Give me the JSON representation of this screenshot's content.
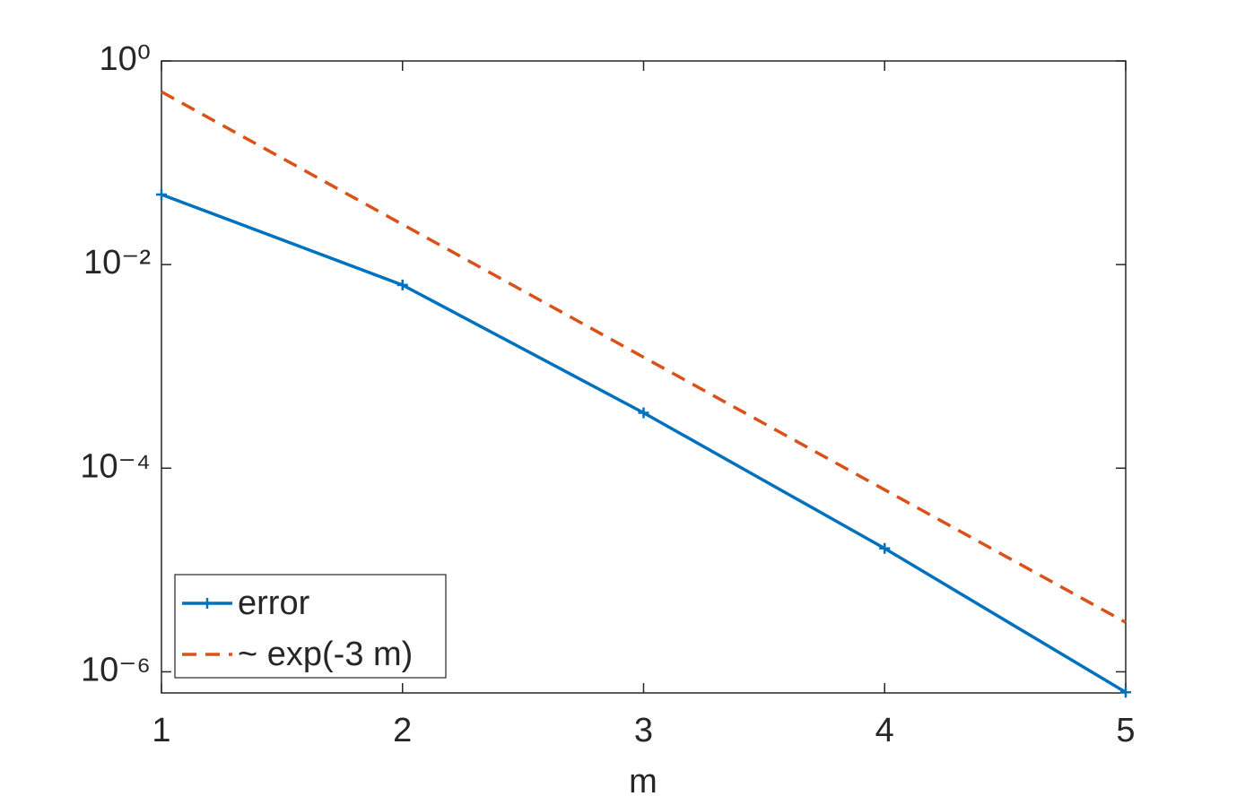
{
  "chart_data": {
    "type": "line",
    "x_label": "m",
    "x": [
      1,
      2,
      3,
      4,
      5
    ],
    "series": [
      {
        "name": "error",
        "color": "#0072bd",
        "style": "solid",
        "marker": "+",
        "values": [
          0.0488,
          0.0063,
          0.00035,
          1.63e-05,
          6.3e-07
        ]
      },
      {
        "name": "~ exp(-3 m)",
        "color": "#d95319",
        "style": "dashed",
        "values": [
          0.498,
          0.0248,
          0.00123,
          6.14e-05,
          3.06e-06
        ]
      }
    ],
    "xlim": [
      1,
      5
    ],
    "xticks": [
      1,
      2,
      3,
      4,
      5
    ],
    "ylim": [
      6.2e-07,
      1
    ],
    "y_scale": "log",
    "yticks": [
      {
        "value": 1e-06,
        "label": "10⁻⁶"
      },
      {
        "value": 0.0001,
        "label": "10⁻⁴"
      },
      {
        "value": 0.01,
        "label": "10⁻²"
      },
      {
        "value": 1,
        "label": "10⁰"
      }
    ],
    "grid": false,
    "legend": "lower left"
  }
}
